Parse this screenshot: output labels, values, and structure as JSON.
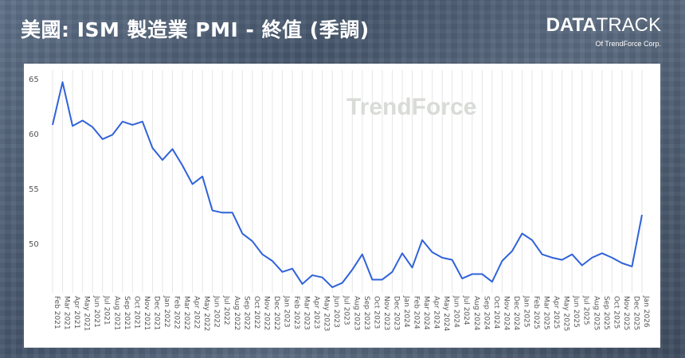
{
  "header": {
    "title": "美國: ISM 製造業 PMI - 終值 (季調)"
  },
  "logo": {
    "main_bold": "DATA",
    "main_thin": "TRACK",
    "sub": "Of TrendForce Corp."
  },
  "watermark": {
    "text": "TrendForce"
  },
  "colors": {
    "line": "#2f62d9",
    "grid": "#e6e6e6",
    "panel": "#ffffff"
  },
  "chart_data": {
    "type": "line",
    "title": "美國: ISM 製造業 PMI - 終值 (季調)",
    "xlabel": "",
    "ylabel": "",
    "ylim": [
      45.5,
      65.8
    ],
    "yticks": [
      50,
      55,
      60,
      65
    ],
    "grid": {
      "vertical": true,
      "horizontal": false
    },
    "categories": [
      "Feb 2021",
      "Mar 2021",
      "Apr 2021",
      "May 2021",
      "Jun 2021",
      "Jul 2021",
      "Aug 2021",
      "Sep 2021",
      "Oct 2021",
      "Nov 2021",
      "Dec 2021",
      "Jan 2022",
      "Feb 2022",
      "Mar 2022",
      "Apr 2022",
      "May 2022",
      "Jun 2022",
      "Jul 2022",
      "Aug 2022",
      "Sep 2022",
      "Oct 2022",
      "Nov 2022",
      "Dec 2022",
      "Jan 2023",
      "Feb 2023",
      "Mar 2023",
      "Apr 2023",
      "May 2023",
      "Jun 2023",
      "Jul 2023",
      "Aug 2023",
      "Sep 2023",
      "Oct 2023",
      "Nov 2023",
      "Dec 2023",
      "Jan 2024",
      "Feb 2024",
      "Mar 2024",
      "Apr 2024",
      "May 2024",
      "Jun 2024",
      "Jul 2024",
      "Aug 2024",
      "Sep 2024",
      "Oct 2024",
      "Nov 2024",
      "Dec 2024",
      "Jan 2025",
      "Feb 2025",
      "Mar 2025",
      "Apr 2025",
      "May 2025",
      "Jun 2025",
      "Jul 2025",
      "Aug 2025",
      "Sep 2025",
      "Oct 2025",
      "Nov 2025",
      "Dec 2025",
      "Jan 2026"
    ],
    "series": [
      {
        "values": [
          60.8,
          64.7,
          60.7,
          61.2,
          60.6,
          59.5,
          59.9,
          61.1,
          60.8,
          61.1,
          58.7,
          57.6,
          58.6,
          57.1,
          55.4,
          56.1,
          53.0,
          52.8,
          52.8,
          50.9,
          50.2,
          49.0,
          48.4,
          47.4,
          47.7,
          46.3,
          47.1,
          46.9,
          46.0,
          46.4,
          47.6,
          49.0,
          46.7,
          46.7,
          47.4,
          49.1,
          47.8,
          50.3,
          49.2,
          48.7,
          48.5,
          46.8,
          47.2,
          47.2,
          46.5,
          48.4,
          49.3,
          50.9,
          50.3,
          49.0,
          48.7,
          48.5,
          49.0,
          48.0,
          48.7,
          49.1,
          48.7,
          48.2,
          47.9,
          52.6
        ]
      }
    ]
  }
}
